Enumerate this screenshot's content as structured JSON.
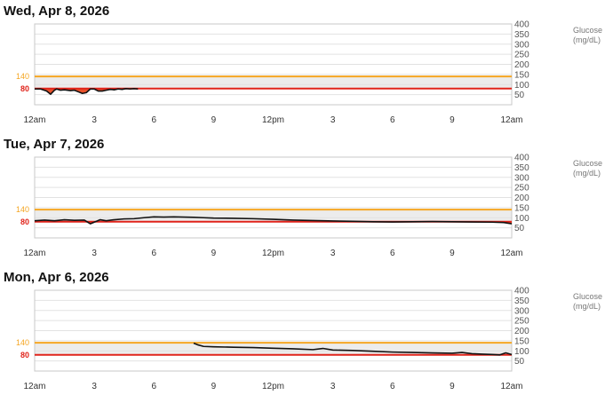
{
  "chart_data": [
    {
      "type": "area",
      "title": "Wed, Apr 8, 2026",
      "ylabel": "Glucose\n(mg/dL)",
      "x_tick_labels": [
        "12am",
        "3",
        "6",
        "9",
        "12pm",
        "3",
        "6",
        "9",
        "12am"
      ],
      "y_ticks": [
        50,
        100,
        150,
        200,
        250,
        300,
        350,
        400
      ],
      "ylim": [
        0,
        400
      ],
      "xlim": [
        0,
        24
      ],
      "target_range": {
        "low": 80,
        "high": 140,
        "low_label": "80",
        "high_label": "140"
      },
      "grid": true,
      "series": [
        {
          "x": [
            0,
            0.3,
            0.6,
            0.8,
            1.0,
            1.1,
            1.3,
            1.5,
            1.8,
            2.0,
            2.2,
            2.4,
            2.6,
            2.8,
            3.0,
            3.2,
            3.4,
            3.6,
            3.8,
            4.0,
            4.2,
            4.4,
            4.6,
            4.8,
            5.0,
            5.2
          ],
          "y": [
            78,
            78,
            68,
            52,
            72,
            78,
            72,
            74,
            70,
            72,
            64,
            56,
            60,
            78,
            78,
            68,
            68,
            72,
            76,
            74,
            78,
            76,
            80,
            78,
            80,
            78
          ]
        }
      ]
    },
    {
      "type": "area",
      "title": "Tue, Apr 7, 2026",
      "ylabel": "Glucose\n(mg/dL)",
      "x_tick_labels": [
        "12am",
        "3",
        "6",
        "9",
        "12pm",
        "3",
        "6",
        "9",
        "12am"
      ],
      "y_ticks": [
        50,
        100,
        150,
        200,
        250,
        300,
        350,
        400
      ],
      "ylim": [
        0,
        400
      ],
      "xlim": [
        0,
        24
      ],
      "target_range": {
        "low": 80,
        "high": 140,
        "low_label": "80",
        "high_label": "140"
      },
      "grid": true,
      "series": [
        {
          "x": [
            0,
            0.5,
            1.0,
            1.5,
            2.0,
            2.5,
            2.8,
            3.0,
            3.3,
            3.6,
            4.0,
            4.5,
            5.0,
            5.5,
            6.0,
            6.5,
            7.0,
            7.5,
            8.0,
            8.5,
            9.0,
            10,
            11,
            12,
            13,
            14,
            15,
            16,
            17,
            18,
            19,
            20,
            21,
            22,
            23,
            23.6,
            24
          ],
          "y": [
            85,
            88,
            85,
            90,
            87,
            88,
            70,
            78,
            90,
            85,
            90,
            94,
            95,
            100,
            104,
            103,
            104,
            103,
            102,
            100,
            98,
            97,
            95,
            92,
            88,
            86,
            84,
            82,
            80,
            79,
            80,
            81,
            80,
            79,
            78,
            76,
            70
          ]
        }
      ]
    },
    {
      "type": "area",
      "title": "Mon, Apr 6, 2026",
      "ylabel": "Glucose\n(mg/dL)",
      "x_tick_labels": [
        "12am",
        "3",
        "6",
        "9",
        "12pm",
        "3",
        "6",
        "9",
        "12am"
      ],
      "y_ticks": [
        50,
        100,
        150,
        200,
        250,
        300,
        350,
        400
      ],
      "ylim": [
        0,
        400
      ],
      "xlim": [
        0,
        24
      ],
      "target_range": {
        "low": 80,
        "high": 140,
        "low_label": "80",
        "high_label": "140"
      },
      "grid": true,
      "series": [
        {
          "x": [
            8.0,
            8.2,
            8.5,
            9,
            10,
            11,
            12,
            13,
            14,
            14.5,
            15,
            16,
            17,
            18,
            19,
            20,
            21,
            21.5,
            22,
            22.5,
            23,
            23.4,
            23.7,
            24
          ],
          "y": [
            138,
            130,
            122,
            120,
            118,
            116,
            113,
            110,
            106,
            112,
            104,
            102,
            98,
            94,
            92,
            90,
            88,
            92,
            86,
            84,
            82,
            80,
            90,
            82
          ]
        }
      ]
    }
  ]
}
